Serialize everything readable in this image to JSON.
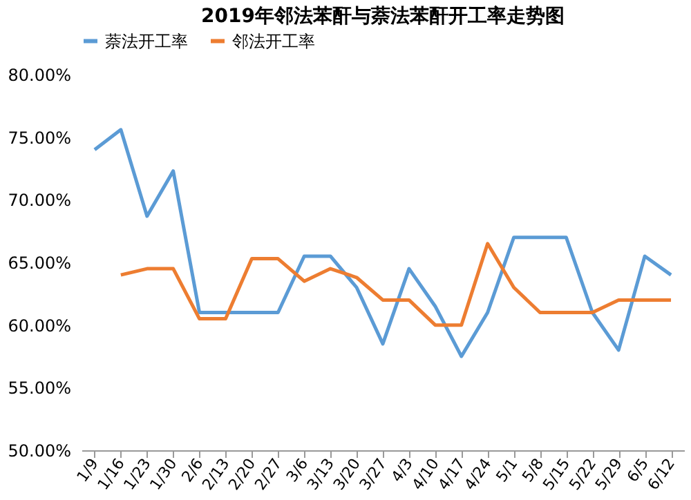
{
  "chart_data": {
    "type": "line",
    "title": "2019年邻法苯酐与萘法苯酐开工率走势图",
    "categories": [
      "1/9",
      "1/16",
      "1/23",
      "1/30",
      "2/6",
      "2/13",
      "2/20",
      "2/27",
      "3/6",
      "3/13",
      "3/20",
      "3/27",
      "4/3",
      "4/10",
      "4/17",
      "4/24",
      "5/1",
      "5/8",
      "5/15",
      "5/22",
      "5/29",
      "6/5",
      "6/12"
    ],
    "series": [
      {
        "name": "萘法开工率",
        "color": "#5b9bd5",
        "values": [
          74,
          75.6,
          68.7,
          72.3,
          61,
          61,
          61,
          61,
          65.5,
          65.5,
          63,
          58.5,
          64.5,
          61.5,
          57.5,
          61,
          67,
          67,
          67,
          61,
          58,
          65.5,
          64
        ]
      },
      {
        "name": "邻法开工率",
        "color": "#ed7d31",
        "values": [
          null,
          64,
          64.5,
          64.5,
          60.5,
          60.5,
          65.3,
          65.3,
          63.5,
          64.5,
          63.8,
          62,
          62,
          60,
          60,
          66.5,
          63,
          61,
          61,
          61,
          62,
          62,
          62
        ]
      }
    ],
    "ylim": [
      50,
      80
    ],
    "yticks": [
      {
        "value": 50,
        "label": "50.00%"
      },
      {
        "value": 55,
        "label": "55.00%"
      },
      {
        "value": 60,
        "label": "60.00%"
      },
      {
        "value": 65,
        "label": "65.00%"
      },
      {
        "value": 70,
        "label": "70.00%"
      },
      {
        "value": 75,
        "label": "75.00%"
      },
      {
        "value": 80,
        "label": "80.00%"
      }
    ],
    "legend": "top",
    "grid": false,
    "marker": "none",
    "line_style": "solid"
  }
}
